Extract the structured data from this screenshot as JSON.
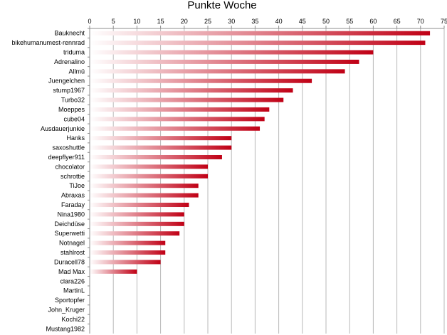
{
  "chart_data": {
    "type": "bar",
    "orientation": "horizontal",
    "title": "Punkte Woche",
    "xlabel": "",
    "ylabel": "",
    "xlim": [
      0,
      75
    ],
    "xticks": [
      0,
      5,
      10,
      15,
      20,
      25,
      30,
      35,
      40,
      45,
      50,
      55,
      60,
      65,
      70,
      75
    ],
    "x_axis_position": "top",
    "grid": true,
    "legend": "none",
    "bar_color": "#c00015",
    "bar_fade_color": "#ffffff",
    "categories": [
      "Bauknecht",
      "bikehumanumest-rennrad",
      "triduma",
      "Adrenalino",
      "Allmü",
      "Juengelchen",
      "stump1967",
      "Turbo32",
      "Moeppes",
      "cube04",
      "Ausdauerjunkie",
      "Hanks",
      "saxoshuttle",
      "deepflyer911",
      "chocolator",
      "schrottie",
      "TiJoe",
      "Abraxas",
      "Faraday",
      "Nina1980",
      "Deichdüse",
      "Superwetti",
      "Notnagel",
      "stahlrost",
      "Duracell78",
      "Mad Max",
      "clara226",
      "MartinL",
      "Sportopfer",
      "John_Kruger",
      "Kochi22",
      "Mustang1982"
    ],
    "values": [
      72,
      71,
      60,
      57,
      54,
      47,
      43,
      41,
      38,
      37,
      36,
      30,
      30,
      28,
      25,
      25,
      23,
      23,
      21,
      20,
      20,
      19,
      16,
      16,
      15,
      10,
      0,
      0,
      0,
      0,
      0,
      0
    ]
  }
}
